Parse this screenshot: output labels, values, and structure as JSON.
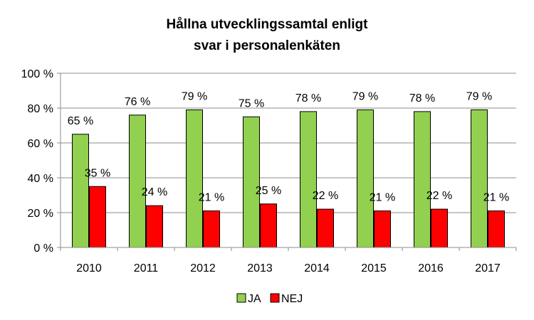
{
  "chart_data": {
    "type": "bar",
    "title": [
      "Hållna utvecklingssamtal enligt",
      "svar i personalenkäten"
    ],
    "categories": [
      "2010",
      "2011",
      "2012",
      "2013",
      "2014",
      "2015",
      "2016",
      "2017"
    ],
    "series": [
      {
        "name": "JA",
        "color": "#92D050",
        "values": [
          65,
          76,
          79,
          75,
          78,
          79,
          78,
          79
        ],
        "labels": [
          "65 %",
          "76 %",
          "79 %",
          "75 %",
          "78 %",
          "79 %",
          "78 %",
          "79 %"
        ]
      },
      {
        "name": "NEJ",
        "color": "#FF0000",
        "values": [
          35,
          24,
          21,
          25,
          22,
          21,
          22,
          21
        ],
        "labels": [
          "35 %",
          "24 %",
          "21 %",
          "25 %",
          "22 %",
          "21 %",
          "22 %",
          "21 %"
        ]
      }
    ],
    "ylim": [
      0,
      100
    ],
    "yticks": [
      0,
      20,
      40,
      60,
      80,
      100
    ],
    "ytick_labels": [
      "0 %",
      "20 %",
      "40 %",
      "60 %",
      "80 %",
      "100 %"
    ],
    "grid": true,
    "legend_position": "bottom"
  }
}
